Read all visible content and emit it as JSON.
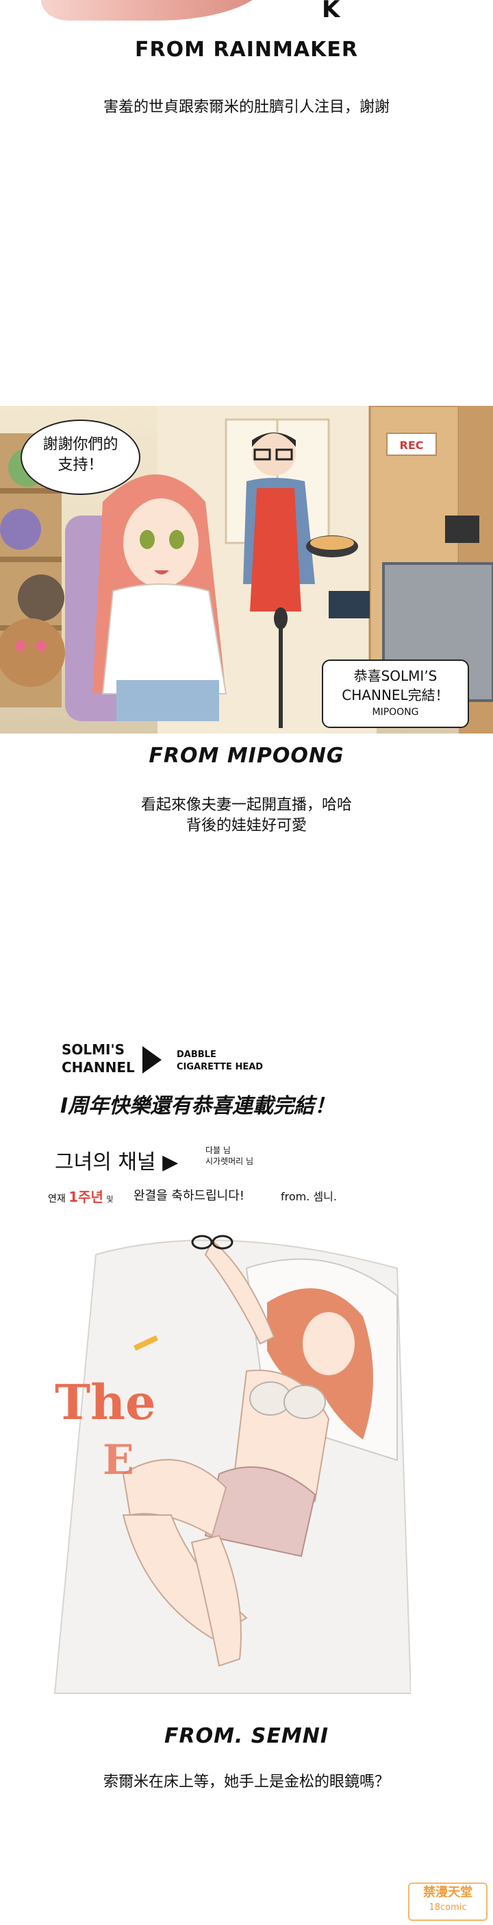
{
  "top_art": {
    "partial_text": "K"
  },
  "section1": {
    "credit": "FROM RAINMAKER",
    "caption": "害羞的世貞跟索爾米的肚臍引人注目，謝謝"
  },
  "panel1": {
    "bubble_left": [
      "謝謝你們的",
      "支持！"
    ],
    "sign": "REC",
    "bubble_right": {
      "line1": "恭喜SOLMI’S",
      "line2": "CHANNEL完結！",
      "signature": "MIPOONG"
    }
  },
  "section2": {
    "credit": "FROM MIPOONG",
    "caption_lines": [
      "看起來像夫妻一起開直播，哈哈",
      "背後的娃娃好可愛"
    ]
  },
  "panel2": {
    "title_left": [
      "SOLMI'S",
      "CHANNEL"
    ],
    "title_right": [
      "DABBLE",
      "CIGARETTE HEAD"
    ],
    "headline": "I周年快樂還有恭喜連載完結！",
    "korean_title": "그녀의 채널 ▶",
    "korean_small": [
      "다블 님",
      "시가렛머리 님"
    ],
    "korean_line": "완결을 축하드립니다!",
    "korean_badge": [
      "연재",
      "1주년",
      "및"
    ],
    "from_note": "from. 셈니.",
    "the_end": [
      "The",
      "E"
    ]
  },
  "section3": {
    "credit": "FROM. SEMNI",
    "caption": "索爾米在床上等，她手上是金松的眼鏡嗎？"
  },
  "watermark": {
    "line1": "禁漫天堂",
    "line2": "18comic"
  }
}
